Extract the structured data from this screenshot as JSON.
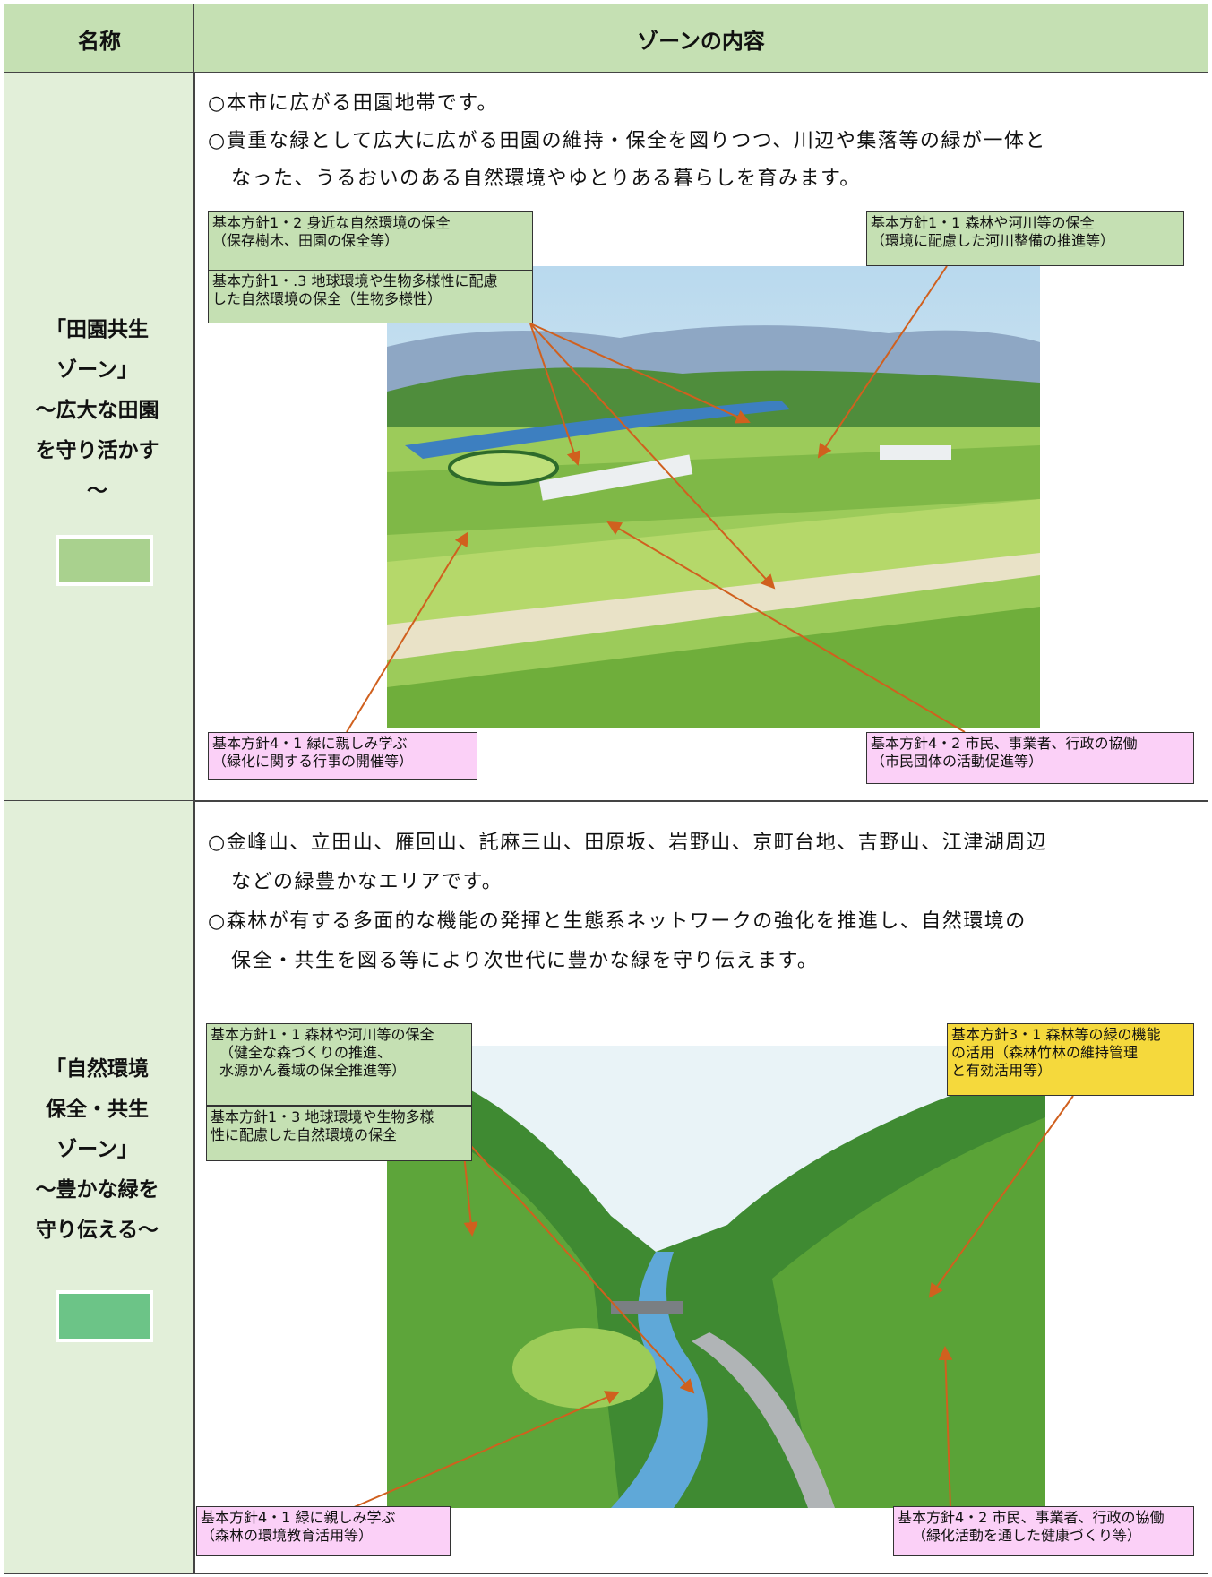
{
  "header": {
    "name": "名称",
    "content": "ゾーンの内容"
  },
  "zones": [
    {
      "name": [
        "「田園共生",
        "ゾーン」",
        "～広大な田園",
        "を守り活かす",
        "～"
      ],
      "description": [
        "○本市に広がる田園地帯です。",
        "○貴重な緑として広大に広がる田園の維持・保全を図りつつ、川辺や集落等の緑が一体と",
        "なった、うるおいのある自然環境やゆとりある暮らしを育みます。"
      ],
      "callouts": [
        [
          "基本方針1・2 身近な自然環境の保全",
          "（保存樹木、田園の保全等）"
        ],
        [
          "基本方針1・.3 地球環境や生物多様性に配慮",
          "した自然環境の保全（生物多様性）"
        ],
        [
          "基本方針1・1 森林や河川等の保全",
          "（環境に配慮した河川整備の推進等）"
        ],
        [
          "基本方針4・1 緑に親しみ学ぶ",
          "（緑化に関する行事の開催等）"
        ],
        [
          "基本方針4・2 市民、事業者、行政の協働",
          "（市民団体の活動促進等）"
        ]
      ]
    },
    {
      "name": [
        "「自然環境",
        "保全・共生",
        "ゾーン」",
        "～豊かな緑を",
        "守り伝える～"
      ],
      "description": [
        "○金峰山、立田山、雁回山、託麻三山、田原坂、岩野山、京町台地、吉野山、江津湖周辺",
        "などの緑豊かなエリアです。",
        "○森林が有する多面的な機能の発揮と生態系ネットワークの強化を推進し、自然環境の",
        "保全・共生を図る等により次世代に豊かな緑を守り伝えます。"
      ],
      "callouts": [
        [
          "基本方針1・1 森林や河川等の保全",
          "（健全な森づくりの推進、",
          "水源かん養域の保全推進等）"
        ],
        [
          "基本方針1・3 地球環境や生物多様",
          "性に配慮した自然環境の保全"
        ],
        [
          "基本方針3・1 森林等の緑の機能",
          "の活用（森林竹林の維持管理",
          "と有効活用等）"
        ],
        [
          "基本方針4・1 緑に親しみ学ぶ",
          "（森林の環境教育活用等）"
        ],
        [
          "基本方針4・2 市民、事業者、行政の協働",
          "（緑化活動を通した健康づくり等）"
        ]
      ]
    }
  ]
}
